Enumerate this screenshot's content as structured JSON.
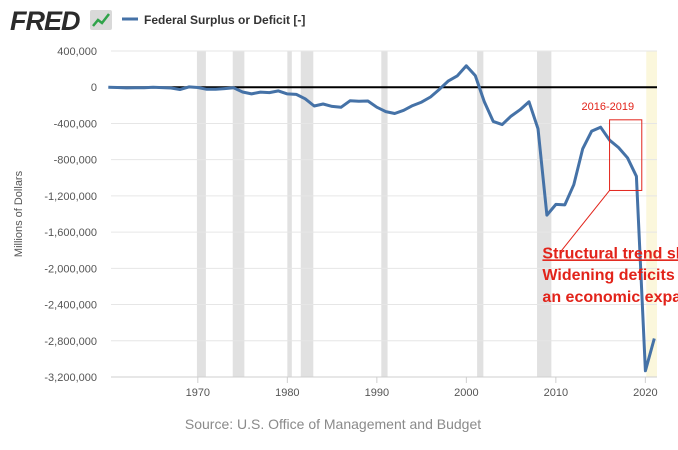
{
  "header": {
    "brand": "FRED",
    "series_label": "Federal Surplus or Deficit [-]"
  },
  "colors": {
    "brand_text": "#2b2b2b",
    "series_line": "#4572a7",
    "zero_line": "#000000",
    "recession": "#e1e1e1",
    "annotation": "#e2231a",
    "grid": "#e6e6e6",
    "axis_text": "#555555",
    "source_text": "#8a8a8a",
    "highlight_band": "#fbf7dc"
  },
  "source": "Source: U.S. Office of Management and Budget",
  "chart_data": {
    "type": "line",
    "title": "Federal Surplus or Deficit [-]",
    "ylabel": "Millions of Dollars",
    "xlabel": "",
    "xlim": [
      1960.3,
      2021.3
    ],
    "ylim": [
      -3200000,
      400000
    ],
    "yticks": [
      400000,
      0,
      -400000,
      -800000,
      -1200000,
      -1600000,
      -2000000,
      -2400000,
      -2800000,
      -3200000
    ],
    "ytick_labels": [
      "400,000",
      "0",
      "-400,000",
      "-800,000",
      "-1,200,000",
      "-1,600,000",
      "-2,000,000",
      "-2,400,000",
      "-2,800,000",
      "-3,200,000"
    ],
    "xticks": [
      1970,
      1980,
      1990,
      2000,
      2010,
      2020
    ],
    "xtick_labels": [
      "1970",
      "1980",
      "1990",
      "2000",
      "2010",
      "2020"
    ],
    "grid": "horizontal",
    "recessions": [
      [
        1969.9,
        1970.9
      ],
      [
        1973.9,
        1975.2
      ],
      [
        1980.0,
        1980.5
      ],
      [
        1981.5,
        1982.9
      ],
      [
        1990.5,
        1991.2
      ],
      [
        2001.2,
        2001.9
      ],
      [
        2007.9,
        2009.5
      ]
    ],
    "highlight_band": [
      2020.1,
      2021.3
    ],
    "series": [
      {
        "name": "Federal Surplus or Deficit [-]",
        "x": [
          1960,
          1961,
          1962,
          1963,
          1964,
          1965,
          1966,
          1967,
          1968,
          1969,
          1970,
          1971,
          1972,
          1973,
          1974,
          1975,
          1976,
          1977,
          1978,
          1979,
          1980,
          1981,
          1982,
          1983,
          1984,
          1985,
          1986,
          1987,
          1988,
          1989,
          1990,
          1991,
          1992,
          1993,
          1994,
          1995,
          1996,
          1997,
          1998,
          1999,
          2000,
          2001,
          2002,
          2003,
          2004,
          2005,
          2006,
          2007,
          2008,
          2009,
          2010,
          2011,
          2012,
          2013,
          2014,
          2015,
          2016,
          2017,
          2018,
          2019,
          2020,
          2021
        ],
        "values": [
          301,
          -3335,
          -7146,
          -4756,
          -5915,
          -1411,
          -3698,
          -8643,
          -25161,
          3242,
          -2842,
          -23033,
          -23373,
          -14908,
          -6135,
          -53242,
          -73732,
          -53659,
          -59185,
          -40726,
          -73830,
          -78968,
          -127977,
          -207802,
          -185367,
          -212308,
          -221227,
          -149730,
          -155178,
          -152639,
          -221036,
          -269238,
          -290321,
          -255051,
          -203186,
          -163952,
          -107431,
          -21884,
          69270,
          125610,
          236241,
          128236,
          -157758,
          -377585,
          -412727,
          -318346,
          -248181,
          -160701,
          -458553,
          -1412688,
          -1294373,
          -1299599,
          -1076573,
          -679775,
          -484602,
          -441960,
          -584651,
          -665446,
          -779137,
          -983590,
          -3131917,
          -2775311
        ]
      }
    ],
    "annotations": [
      {
        "label": "2016-2019",
        "x_range": [
          2016.0,
          2019.6
        ],
        "y_range": [
          -1140000,
          -360000
        ]
      },
      {
        "label": "Structural trend shift:",
        "x": 2008.5,
        "y": -1890000
      },
      {
        "label": "Widening deficits during",
        "x": 2008.5,
        "y": -2130000
      },
      {
        "label": "an economic expansion",
        "x": 2008.5,
        "y": -2370000
      }
    ],
    "pointer": {
      "from": [
        2016.0,
        -1140000
      ],
      "to": [
        2010.5,
        -1820000
      ]
    }
  }
}
